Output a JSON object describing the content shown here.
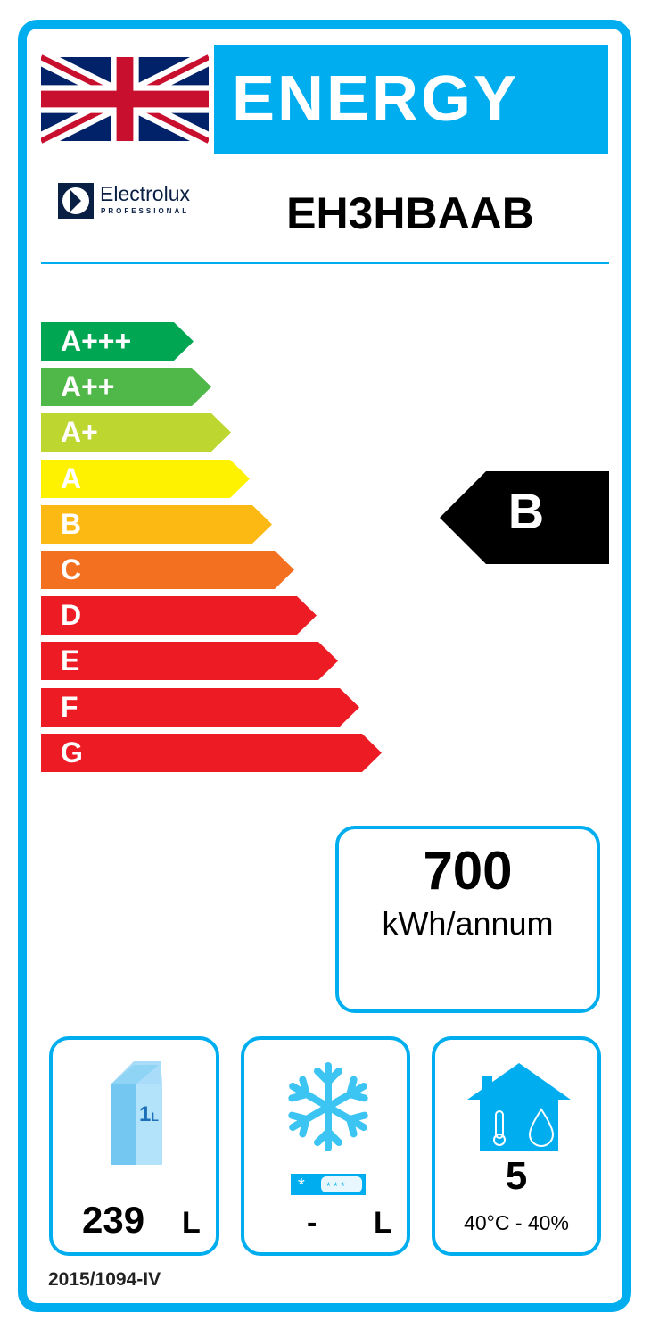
{
  "header": {
    "title": "ENERGY",
    "flag": "united-kingdom-flag",
    "brand": "Electrolux",
    "brand_sub": "PROFESSIONAL",
    "model": "EH3HBAAB"
  },
  "scale": [
    {
      "label": "A+++",
      "color": "#00a651"
    },
    {
      "label": "A++",
      "color": "#50b848"
    },
    {
      "label": "A+",
      "color": "#bed630"
    },
    {
      "label": "A",
      "color": "#fff200"
    },
    {
      "label": "B",
      "color": "#fdb913"
    },
    {
      "label": "C",
      "color": "#f37021"
    },
    {
      "label": "D",
      "color": "#ed1c24"
    },
    {
      "label": "E",
      "color": "#ed1c24"
    },
    {
      "label": "F",
      "color": "#ed1c24"
    },
    {
      "label": "G",
      "color": "#ed1c24"
    }
  ],
  "rating": {
    "class": "B"
  },
  "consumption": {
    "value": "700",
    "unit": "kWh/annum"
  },
  "fresh": {
    "icon": "milk-carton-icon",
    "icon_text": "1",
    "icon_unit": "L",
    "value": "239",
    "unit": "L"
  },
  "frozen": {
    "icon": "snowflake-icon",
    "value": "-",
    "unit": "L"
  },
  "climate": {
    "icon": "house-climate-icon",
    "value": "5",
    "conditions": "40°C - 40%"
  },
  "regulation": "2015/1094-IV",
  "colors": {
    "accent": "#00aeef"
  }
}
